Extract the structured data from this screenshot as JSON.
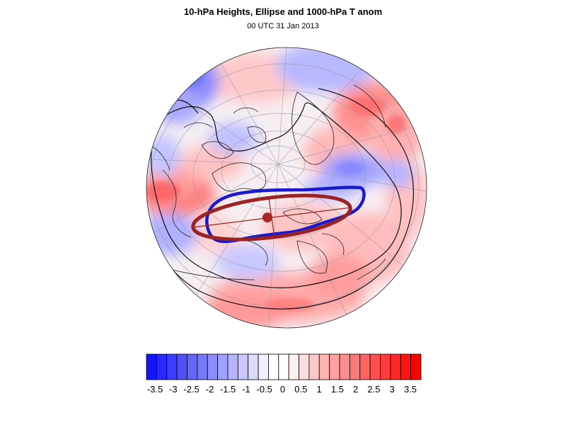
{
  "title": "10-hPa Heights, Ellipse and 1000-hPa T anom",
  "subtitle": "00 UTC 31 Jan 2013",
  "map": {
    "projection": "orthographic (north polar)",
    "field": "1000-hPa T anom",
    "contours": "10-hPa Heights",
    "vortex_contour_color": "#1a1acc",
    "ellipse_color": "#9b2323",
    "ellipse_center_color": "#a52828"
  },
  "colorbar": {
    "colors": [
      "#1414ff",
      "#2828ff",
      "#3c3cff",
      "#5050ff",
      "#6464ff",
      "#7878ff",
      "#8c8cff",
      "#a0a0ff",
      "#b4b4ff",
      "#c8c8ff",
      "#dcdcff",
      "#f0f0ff",
      "#ffffff",
      "#ffffff",
      "#fff0f0",
      "#ffdcdc",
      "#ffc8c8",
      "#ffb4b4",
      "#ffa0a0",
      "#ff8c8c",
      "#ff7878",
      "#ff6464",
      "#ff5050",
      "#ff3c3c",
      "#ff2828",
      "#ff1414",
      "#ff0000"
    ],
    "labels": [
      "-3.5",
      "-3",
      "-2.5",
      "-2",
      "-1.5",
      "-1",
      "-0.5",
      "0",
      "0.5",
      "1",
      "1.5",
      "2",
      "2.5",
      "3",
      "3.5"
    ]
  }
}
